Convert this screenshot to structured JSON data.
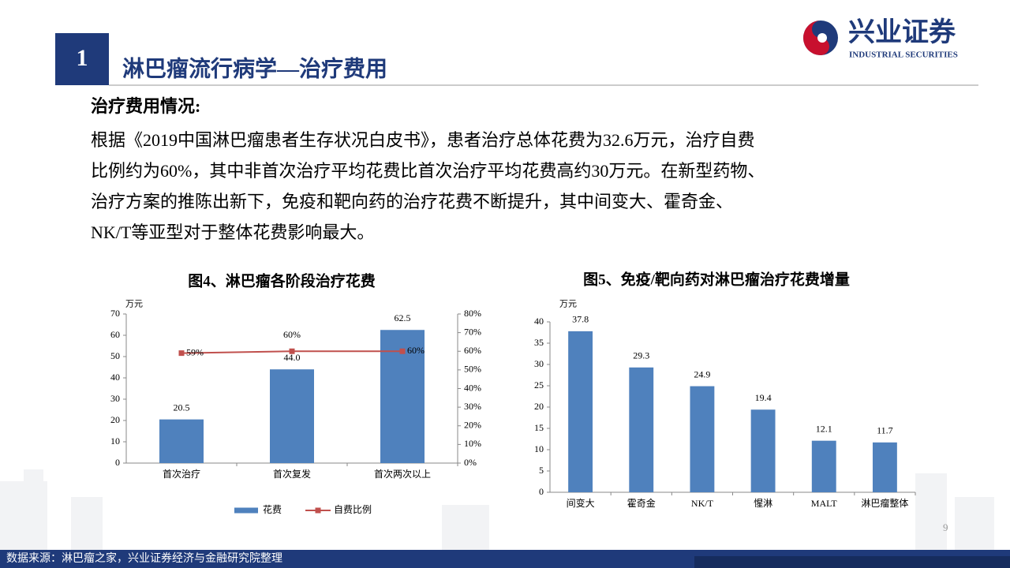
{
  "header": {
    "section": "1",
    "title": "淋巴瘤流行病学—治疗费用",
    "logo_cn": "兴业证券",
    "logo_en": "INDUSTRIAL SECURITIES"
  },
  "body": {
    "heading": "治疗费用情况:",
    "lines": [
      "根据《2019中国淋巴瘤患者生存状况白皮书》，患者治疗总体花费为32.6万元，治疗自费",
      "比例约为60%，其中非首次治疗平均花费比首次治疗平均花费高约30万元。在新型药物、",
      "治疗方案的推陈出新下，免疫和靶向药的治疗花费不断提升，其中间变大、霍奇金、",
      "NK/T等亚型对于整体花费影响最大。"
    ]
  },
  "chart_data": [
    {
      "type": "bar",
      "title": "图4、淋巴瘤各阶段治疗花费",
      "y_label": "万元",
      "categories": [
        "首次治疗",
        "首次复发",
        "首次两次以上"
      ],
      "series": [
        {
          "name": "花费",
          "color": "#4f81bd",
          "values": [
            20.5,
            44.0,
            62.5
          ],
          "value_labels": [
            "20.5",
            "44.0",
            "62.5"
          ]
        },
        {
          "name": "自费比例",
          "color": "#c0504d",
          "type": "line",
          "axis": "y2",
          "values": [
            59,
            60,
            60
          ],
          "value_labels": [
            "59%",
            "60%",
            "60%"
          ]
        }
      ],
      "ylim": [
        0,
        70
      ],
      "yticks": [
        0,
        10,
        20,
        30,
        40,
        50,
        60,
        70
      ],
      "y2lim": [
        0,
        80
      ],
      "y2ticks": [
        {
          "value": 0,
          "label": "0%"
        },
        {
          "value": 10,
          "label": "10%"
        },
        {
          "value": 20,
          "label": "20%"
        },
        {
          "value": 30,
          "label": "30%"
        },
        {
          "value": 40,
          "label": "40%"
        },
        {
          "value": 50,
          "label": "50%"
        },
        {
          "value": 60,
          "label": "60%"
        },
        {
          "value": 70,
          "label": "70%"
        },
        {
          "value": 80,
          "label": "80%"
        }
      ],
      "legend": "bottom"
    },
    {
      "type": "bar",
      "title": "图5、免疫/靶向药对淋巴瘤治疗花费增量",
      "y_label": "万元",
      "categories": [
        "间变大",
        "霍奇金",
        "NK/T",
        "惺淋",
        "MALT",
        "淋巴瘤整体"
      ],
      "values": [
        37.8,
        29.3,
        24.9,
        19.4,
        12.1,
        11.7
      ],
      "color": "#4f81bd",
      "ylim": [
        0,
        40
      ],
      "yticks": [
        0,
        5,
        10,
        15,
        20,
        25,
        30,
        35,
        40
      ]
    }
  ],
  "footer": {
    "source": "数据来源：淋巴瘤之家，兴业证券经济与金融研究院整理",
    "page": "9"
  }
}
